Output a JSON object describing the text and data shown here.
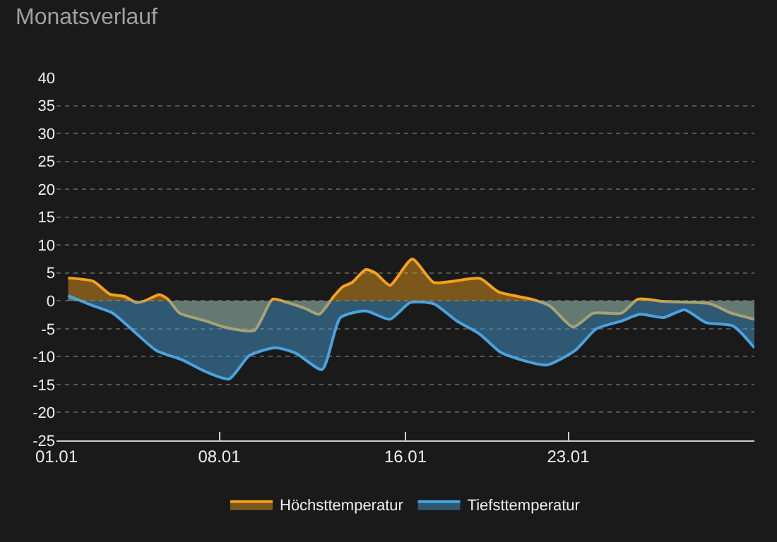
{
  "chart_data": {
    "type": "area",
    "title": "Monatsverlauf",
    "xlim": [
      "--01-01",
      "--01-31"
    ],
    "xticks": [
      {
        "value": "--01-01",
        "label": "01.01"
      },
      {
        "value": "--01-08",
        "label": "08.01"
      },
      {
        "value": "--01-16",
        "label": "16.01"
      },
      {
        "value": "--01-23",
        "label": "23.01"
      }
    ],
    "ylim": [
      -25,
      40
    ],
    "yticks": [
      -25,
      -20,
      -15,
      -10,
      -5,
      0,
      5,
      10,
      15,
      20,
      25,
      30,
      35,
      40
    ],
    "grid": "y",
    "legend": "bottom",
    "marker": "none",
    "series": [
      {
        "name": "Höchsttemperatur",
        "color": "#f5a11c",
        "x": [
          "--01-01T12:00",
          "--01-02T14:00",
          "--01-03T07:00",
          "--01-03T22:00",
          "--01-04T10:00",
          "--01-04T19:00",
          "--01-05T10:00",
          "--01-05T19:00",
          "--01-06T07:00",
          "--01-07T10:00",
          "--01-08T05:00",
          "--01-09T12:00",
          "--01-10T07:00",
          "--01-10T22:00",
          "--01-11T17:00",
          "--01-12T07:00",
          "--01-12T22:00",
          "--01-13T07:00",
          "--01-13T17:00",
          "--01-14T07:00",
          "--01-14T17:00",
          "--01-15T08:00",
          "--01-16T07:00",
          "--01-17T05:00",
          "--01-18T00:00",
          "--01-19T05:00",
          "--01-20T00:00",
          "--01-21T10:00",
          "--01-22T05:00",
          "--01-23T05:00",
          "--01-24T02:00",
          "--01-25T07:00",
          "--01-26T00:00",
          "--01-27T02:00",
          "--01-29T02:00",
          "--01-30T00:00",
          "--01-31T00:00"
        ],
        "values": [
          4.1,
          3.5,
          1.2,
          0.8,
          -0.3,
          0,
          1.1,
          0.3,
          -2.2,
          -3.6,
          -4.7,
          -5.3,
          0.3,
          -0.3,
          -1.4,
          -2.4,
          0.8,
          2.5,
          3.3,
          5.6,
          5,
          2.8,
          7.5,
          3.3,
          3.5,
          4,
          1.6,
          0.3,
          -0.9,
          -4.7,
          -2.2,
          -2.2,
          0.3,
          -0.1,
          -0.5,
          -2.2,
          -3.3
        ]
      },
      {
        "name": "Tiefsttemperatur",
        "color": "#4aa3df",
        "x": [
          "--01-01T12:00",
          "--01-02T14:00",
          "--01-03T10:00",
          "--01-04T10:00",
          "--01-05T07:00",
          "--01-06T10:00",
          "--01-07T10:00",
          "--01-08T10:00",
          "--01-09T07:00",
          "--01-10T10:00",
          "--01-11T07:00",
          "--01-12T10:00",
          "--01-13T05:00",
          "--01-14T07:00",
          "--01-15T08:00",
          "--01-16T05:00",
          "--01-17T05:00",
          "--01-18T05:00",
          "--01-19T05:00",
          "--01-20T02:00",
          "--01-21T00:00",
          "--01-22T02:00",
          "--01-23T07:00",
          "--01-24T05:00",
          "--01-25T07:00",
          "--01-26T02:00",
          "--01-27T02:00",
          "--01-28T00:00",
          "--01-28T22:00",
          "--01-30T02:00",
          "--01-31T00:00"
        ],
        "values": [
          0.9,
          -0.9,
          -2.2,
          -5.8,
          -8.9,
          -10.6,
          -12.7,
          -14,
          -9.8,
          -8.4,
          -9.4,
          -12.3,
          -3,
          -1.8,
          -3.3,
          -0.3,
          -0.5,
          -3.6,
          -6,
          -9.2,
          -10.6,
          -11.5,
          -8.9,
          -5,
          -3.6,
          -2.4,
          -3,
          -1.6,
          -3.9,
          -4.5,
          -8.4
        ]
      }
    ]
  }
}
